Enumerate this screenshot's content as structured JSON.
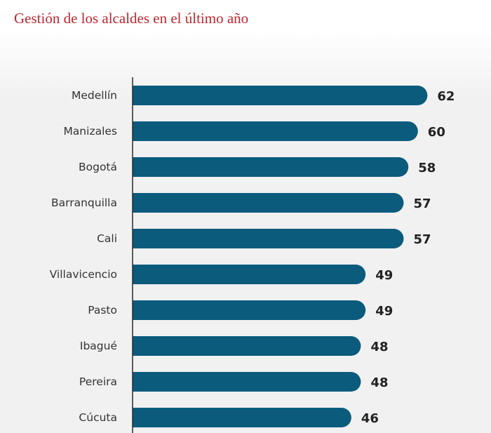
{
  "colors": {
    "title": "#c0262e",
    "bar": "#0b5b7d",
    "axis": "#2b2b2b",
    "background": "#f1f1f1"
  },
  "chart_data": {
    "type": "bar",
    "orientation": "horizontal",
    "title": "Gestión de los alcaldes en el último año",
    "categories": [
      "Medellín",
      "Manizales",
      "Bogotá",
      "Barranquilla",
      "Cali",
      "Villavicencio",
      "Pasto",
      "Ibagué",
      "Pereira",
      "Cúcuta"
    ],
    "values": [
      62,
      60,
      58,
      57,
      57,
      49,
      49,
      48,
      48,
      46
    ],
    "xlim": [
      0,
      64
    ],
    "grid": false,
    "data_labels": true
  }
}
